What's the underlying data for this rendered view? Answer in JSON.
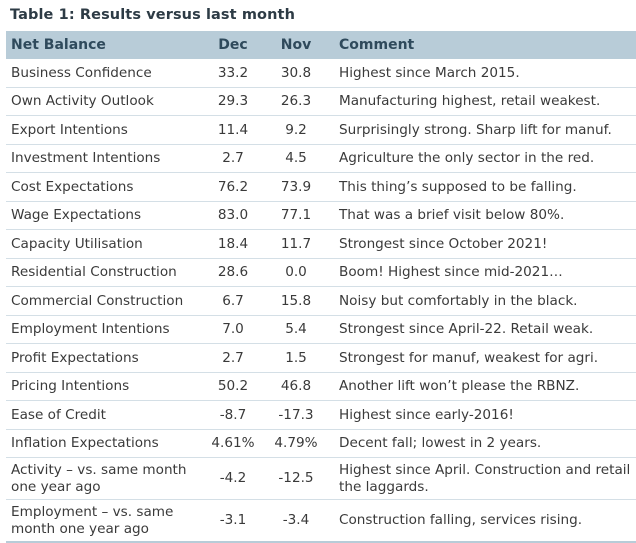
{
  "title": "Table 1: Results versus last month",
  "headers": [
    "Net Balance",
    "Dec",
    "Nov",
    "Comment"
  ],
  "rows": [
    {
      "name": "Business Confidence",
      "dec": "33.2",
      "nov": "30.8",
      "comment": "Highest since March 2015."
    },
    {
      "name": "Own Activity Outlook",
      "dec": "29.3",
      "nov": "26.3",
      "comment": "Manufacturing highest, retail weakest."
    },
    {
      "name": "Export Intentions",
      "dec": "11.4",
      "nov": "9.2",
      "comment": "Surprisingly strong. Sharp lift for manuf."
    },
    {
      "name": "Investment Intentions",
      "dec": "2.7",
      "nov": "4.5",
      "comment": "Agriculture the only sector in the red."
    },
    {
      "name": "Cost Expectations",
      "dec": "76.2",
      "nov": "73.9",
      "comment": "This thing’s supposed to be falling."
    },
    {
      "name": "Wage Expectations",
      "dec": "83.0",
      "nov": "77.1",
      "comment": "That was a brief visit below 80%."
    },
    {
      "name": "Capacity Utilisation",
      "dec": "18.4",
      "nov": "11.7",
      "comment": "Strongest since October 2021!"
    },
    {
      "name": "Residential Construction",
      "dec": "28.6",
      "nov": "0.0",
      "comment": "Boom! Highest since mid-2021…"
    },
    {
      "name": "Commercial Construction",
      "dec": "6.7",
      "nov": "15.8",
      "comment": "Noisy but comfortably in the black."
    },
    {
      "name": "Employment Intentions",
      "dec": "7.0",
      "nov": "5.4",
      "comment": "Strongest since April-22. Retail weak."
    },
    {
      "name": "Profit Expectations",
      "dec": "2.7",
      "nov": "1.5",
      "comment": "Strongest for manuf, weakest for agri."
    },
    {
      "name": "Pricing Intentions",
      "dec": "50.2",
      "nov": "46.8",
      "comment": "Another lift won’t please the RBNZ."
    },
    {
      "name": "Ease of Credit",
      "dec": "-8.7",
      "nov": "-17.3",
      "comment": "Highest since early-2016!"
    },
    {
      "name": "Inflation Expectations",
      "dec": "4.61%",
      "nov": "4.79%",
      "comment": "Decent fall; lowest in 2 years."
    },
    {
      "name": "Activity – vs. same month one year ago",
      "dec": "-4.2",
      "nov": "-12.5",
      "comment": "Highest since April. Construction and retail the laggards."
    },
    {
      "name": "Employment – vs. same month one year ago",
      "dec": "-3.1",
      "nov": "-3.4",
      "comment": "Construction falling, services rising."
    }
  ]
}
